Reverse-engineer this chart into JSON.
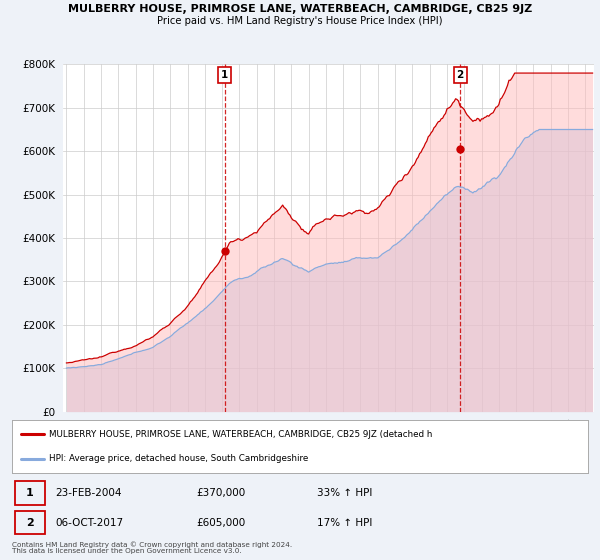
{
  "title": "MULBERRY HOUSE, PRIMROSE LANE, WATERBEACH, CAMBRIDGE, CB25 9JZ",
  "subtitle": "Price paid vs. HM Land Registry's House Price Index (HPI)",
  "bg_color": "#eef2f8",
  "plot_bg_color": "#ffffff",
  "red_line_color": "#cc0000",
  "blue_line_color": "#88aadd",
  "purchase1_date": "23-FEB-2004",
  "purchase1_price": 370000,
  "purchase1_hpi": "33% ↑ HPI",
  "purchase1_year": 2004.14,
  "purchase2_date": "06-OCT-2017",
  "purchase2_price": 605000,
  "purchase2_hpi": "17% ↑ HPI",
  "purchase2_year": 2017.76,
  "ylim_max": 800000,
  "xlim_start": 1994.8,
  "xlim_end": 2025.5,
  "legend_label_red": "MULBERRY HOUSE, PRIMROSE LANE, WATERBEACH, CAMBRIDGE, CB25 9JZ (detached h",
  "legend_label_blue": "HPI: Average price, detached house, South Cambridgeshire",
  "footnote1": "Contains HM Land Registry data © Crown copyright and database right 2024.",
  "footnote2": "This data is licensed under the Open Government Licence v3.0."
}
